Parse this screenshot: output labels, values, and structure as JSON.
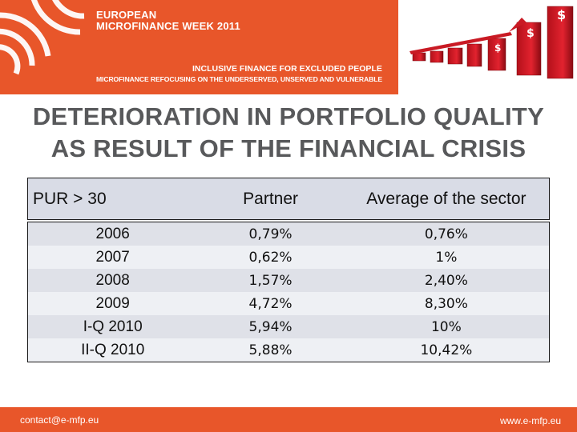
{
  "banner": {
    "title_line1": "EUROPEAN",
    "title_line2": "MICROFINANCE WEEK 2011",
    "subtitle1": "INCLUSIVE FINANCE FOR EXCLUDED PEOPLE",
    "subtitle2": "MICROFINANCE REFOCUSING ON THE UNDERSERVED, UNSERVED AND VULNERABLE",
    "coin_symbol": "$",
    "accent_color": "#e8562a"
  },
  "slide": {
    "title": "DETERIORATION IN PORTFOLIO QUALITY AS RESULT OF THE FINANCIAL CRISIS"
  },
  "table": {
    "headers": [
      "PUR > 30",
      "Partner",
      "Average of the sector"
    ],
    "rows": [
      [
        "2006",
        "0,79%",
        "0,76%"
      ],
      [
        "2007",
        "0,62%",
        "1%"
      ],
      [
        "2008",
        "1,57%",
        "2,40%"
      ],
      [
        "2009",
        "4,72%",
        "8,30%"
      ],
      [
        "I-Q 2010",
        "5,94%",
        "10%"
      ],
      [
        "II-Q 2010",
        "5,88%",
        "10,42%"
      ]
    ]
  },
  "footer": {
    "email": "contact@e-mfp.eu",
    "website": "www.e-mfp.eu"
  }
}
